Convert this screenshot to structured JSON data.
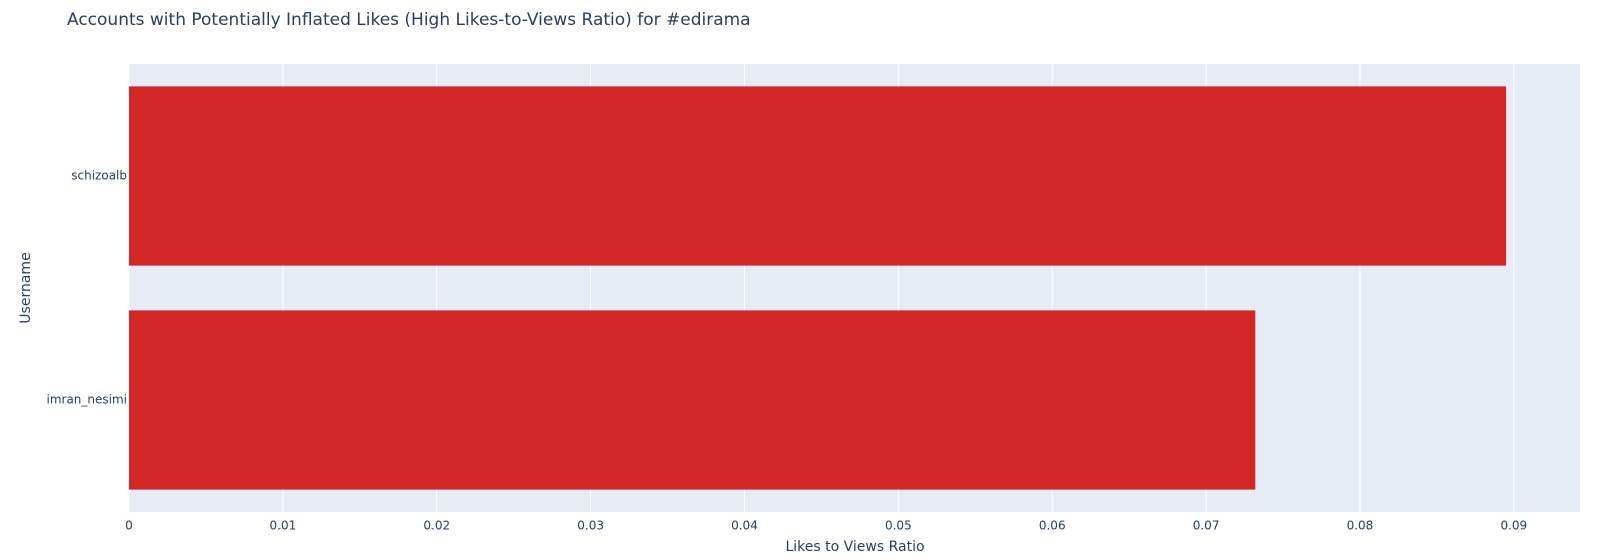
{
  "chart_data": {
    "type": "bar",
    "orientation": "horizontal",
    "title": "Accounts with Potentially Inflated Likes (High Likes-to-Views Ratio) for #edirama",
    "x_label": "Likes to Views Ratio",
    "y_label": "Username",
    "categories": [
      "schizoalb",
      "imran_nesimi"
    ],
    "values": [
      0.0895,
      0.0732
    ],
    "color": "#d62728",
    "xlim": [
      0,
      0.0943
    ],
    "xticks": [
      0,
      0.01,
      0.02,
      0.03,
      0.04,
      0.05,
      0.06,
      0.07,
      0.08,
      0.09
    ],
    "grid": true
  }
}
